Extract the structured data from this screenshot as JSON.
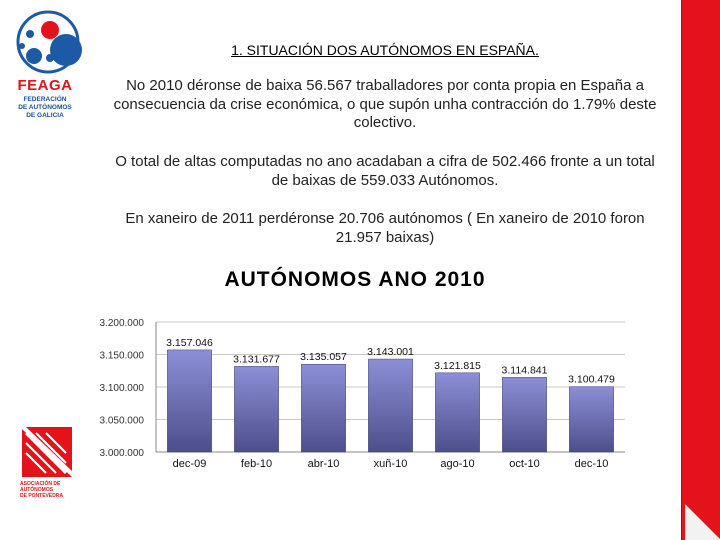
{
  "logos": {
    "feaga": {
      "brand": "FEAGA",
      "sub": [
        "FEDERACIÓN",
        "DE AUTÓNOMOS",
        "DE GALICIA"
      ]
    },
    "association": {
      "sub": [
        "ASOCIACIÓN DE",
        "AUTÓNOMOS",
        "DE PONTEVEDRA"
      ]
    }
  },
  "slide": {
    "title": "1. SITUACIÓN DOS AUTÓNOMOS EN ESPAÑA.",
    "paragraphs": [
      "No 2010 déronse de baixa 56.567 traballadores por conta propia en España a consecuencia da crise económica, o que supón unha contracción do 1.79% deste colectivo.",
      "O total de altas computadas no ano acadaban a cifra de 502.466 fronte a un total de baixas de 559.033 Autónomos.",
      "En xaneiro de 2011 perdéronse 20.706 autónomos ( En xaneiro de 2010 foron 21.957 baixas)"
    ]
  },
  "chart_data": {
    "type": "bar",
    "title": "AUTÓNOMOS ANO 2010",
    "categories": [
      "dec-09",
      "feb-10",
      "abr-10",
      "xuñ-10",
      "ago-10",
      "oct-10",
      "dec-10"
    ],
    "values": [
      3157046,
      3131677,
      3135057,
      3143001,
      3121815,
      3114841,
      3100479
    ],
    "value_labels": [
      "3.157.046",
      "3.131.677",
      "3.135.057",
      "3.143.001",
      "3.121.815",
      "3.114.841",
      "3.100.479"
    ],
    "y_ticks": [
      3000000,
      3050000,
      3100000,
      3150000,
      3200000
    ],
    "y_tick_labels": [
      "3.000.000",
      "3.050.000",
      "3.100.000",
      "3.150.000",
      "3.200.000"
    ],
    "ylim": [
      3000000,
      3200000
    ],
    "grid": true,
    "bar_color": "#4d4f8c",
    "legend": false
  }
}
